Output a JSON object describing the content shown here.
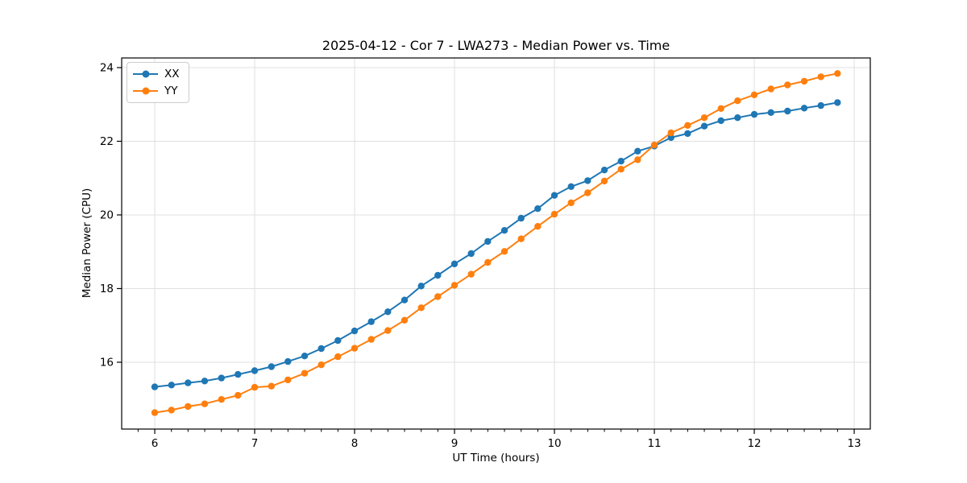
{
  "chart_data": {
    "type": "line",
    "title": "2025-04-12 - Cor 7 - LWA273 - Median Power vs. Time",
    "xlabel": "UT Time (hours)",
    "ylabel": "Median Power (CPU)",
    "x": [
      6.0,
      6.167,
      6.333,
      6.5,
      6.667,
      6.833,
      7.0,
      7.167,
      7.333,
      7.5,
      7.667,
      7.833,
      8.0,
      8.167,
      8.333,
      8.5,
      8.667,
      8.833,
      9.0,
      9.167,
      9.333,
      9.5,
      9.667,
      9.833,
      10.0,
      10.167,
      10.333,
      10.5,
      10.667,
      10.833,
      11.0,
      11.167,
      11.333,
      11.5,
      11.667,
      11.833,
      12.0,
      12.167,
      12.333,
      12.5,
      12.667,
      12.833
    ],
    "series": [
      {
        "name": "XX",
        "color": "#1f77b4",
        "marker": "circle",
        "values": [
          15.33,
          15.38,
          15.44,
          15.49,
          15.57,
          15.67,
          15.77,
          15.88,
          16.02,
          16.17,
          16.37,
          16.59,
          16.85,
          17.1,
          17.37,
          17.69,
          18.07,
          18.36,
          18.67,
          18.95,
          19.28,
          19.58,
          19.91,
          20.17,
          20.53,
          20.77,
          20.93,
          21.22,
          21.46,
          21.73,
          21.87,
          22.1,
          22.21,
          22.41,
          22.56,
          22.64,
          22.73,
          22.78,
          22.82,
          22.9,
          22.97,
          23.05
        ]
      },
      {
        "name": "YY",
        "color": "#ff7f0e",
        "marker": "circle",
        "values": [
          14.63,
          14.7,
          14.8,
          14.87,
          14.99,
          15.1,
          15.32,
          15.35,
          15.52,
          15.7,
          15.93,
          16.15,
          16.38,
          16.62,
          16.86,
          17.14,
          17.48,
          17.78,
          18.09,
          18.39,
          18.71,
          19.01,
          19.35,
          19.69,
          20.02,
          20.33,
          20.6,
          20.92,
          21.24,
          21.5,
          21.9,
          22.23,
          22.43,
          22.64,
          22.89,
          23.1,
          23.26,
          23.42,
          23.53,
          23.63,
          23.75,
          23.84
        ]
      }
    ],
    "xlim": [
      5.669,
      13.161
    ],
    "ylim": [
      14.185,
      24.262
    ],
    "x_major_ticks": [
      6,
      7,
      8,
      9,
      10,
      11,
      12,
      13
    ],
    "y_major_ticks": [
      16,
      18,
      20,
      22,
      24
    ],
    "x_minor_tick_step": 0.1667,
    "grid": true,
    "legend_position": "upper left",
    "colors": {
      "grid": "#e0e0e0",
      "spine": "#000000",
      "background": "#ffffff",
      "text": "#000000"
    }
  }
}
